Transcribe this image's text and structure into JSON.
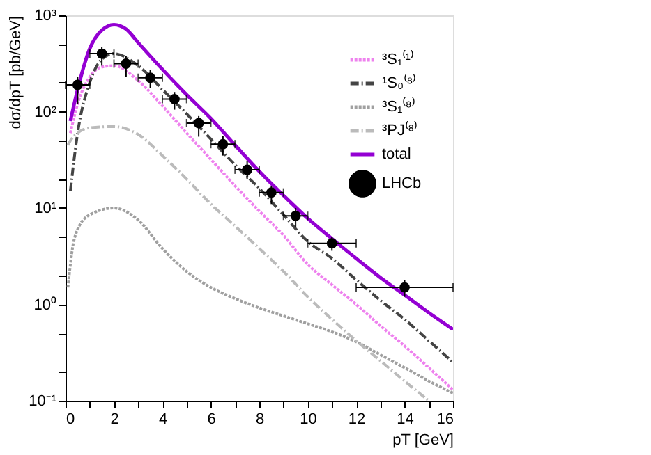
{
  "chart_data": {
    "type": "line",
    "xlabel": "pT [GeV]",
    "ylabel": "dσ/dpT [pb/GeV]",
    "log": "y",
    "legend": "top right",
    "grid": false,
    "xlim": [
      0,
      16
    ],
    "xticks": [
      0,
      {
        "value": 1,
        "label": null
      },
      2,
      {
        "value": 3,
        "label": null
      },
      4,
      {
        "value": 5,
        "label": null
      },
      6,
      {
        "value": 7,
        "label": null
      },
      8,
      {
        "value": 9,
        "label": null
      },
      10,
      {
        "value": 11,
        "label": null
      },
      12,
      {
        "value": 13,
        "label": null
      },
      14,
      {
        "value": 15,
        "label": null
      },
      16
    ],
    "ylim": [
      0.1,
      1000
    ],
    "yticks": [
      {
        "value": 0.1,
        "label": "10⁻¹"
      },
      {
        "value": 0.2,
        "label": null
      },
      {
        "value": 0.5,
        "label": null
      },
      {
        "value": 1,
        "label": "10⁰"
      },
      {
        "value": 2,
        "label": null
      },
      {
        "value": 5,
        "label": null
      },
      {
        "value": 10,
        "label": "10¹"
      },
      {
        "value": 20,
        "label": null
      },
      {
        "value": 50,
        "label": null
      },
      {
        "value": 100,
        "label": "10²"
      },
      {
        "value": 200,
        "label": null
      },
      {
        "value": 500,
        "label": null
      },
      {
        "value": 1000,
        "label": "10³"
      }
    ],
    "series": [
      {
        "name": "³S₁⁽¹⁾",
        "color": "#ee82ee",
        "line_style": "dotted",
        "x": [
          0.2,
          0.5,
          1,
          1.5,
          2,
          3,
          4,
          5,
          6,
          7,
          8,
          9,
          10,
          11,
          12,
          13,
          14,
          15,
          16
        ],
        "values": [
          60,
          120,
          230,
          290,
          300,
          210,
          115,
          60,
          32,
          17,
          9.3,
          5.2,
          2.6,
          1.6,
          1.0,
          0.6,
          0.37,
          0.22,
          0.13
        ]
      },
      {
        "name": "¹S₀⁽⁸⁾",
        "color": "#444444",
        "line_style": "dashed",
        "x": [
          0.2,
          0.5,
          1,
          1.5,
          2,
          3,
          4,
          5,
          6,
          7,
          8,
          9,
          10,
          11,
          12,
          13,
          14,
          15,
          16
        ],
        "values": [
          15,
          60,
          200,
          350,
          400,
          300,
          170,
          95,
          52,
          28,
          16,
          8.5,
          4.5,
          3,
          1.8,
          1.1,
          0.7,
          0.42,
          0.25
        ]
      },
      {
        "name": "³S₁⁽⁸⁾",
        "color": "#a0a0a0",
        "line_style": "dotted",
        "x": [
          0.1,
          0.3,
          0.5,
          1,
          2,
          3,
          4,
          5,
          6,
          7,
          8,
          9,
          10,
          11,
          12,
          13,
          14,
          15,
          16
        ],
        "values": [
          1.5,
          4,
          6,
          8.5,
          10,
          7.5,
          3.8,
          2.2,
          1.5,
          1.15,
          0.92,
          0.76,
          0.63,
          0.52,
          0.41,
          0.3,
          0.22,
          0.16,
          0.12
        ]
      },
      {
        "name": "³PJ⁽⁸⁾",
        "color": "#bbbbbb",
        "line_style": "dashed",
        "x": [
          0.1,
          0.2,
          0.5,
          1,
          2,
          3,
          4,
          5,
          6,
          7,
          8,
          9,
          10,
          11,
          12,
          13,
          14,
          15
        ],
        "values": [
          45,
          50,
          60,
          68,
          70,
          58,
          35,
          20,
          11,
          6.5,
          3.8,
          2.2,
          1.2,
          0.7,
          0.42,
          0.26,
          0.16,
          0.1
        ]
      },
      {
        "name": "total",
        "color": "#9400d3",
        "line_style": "solid",
        "x": [
          0.2,
          0.5,
          1,
          1.5,
          2,
          2.5,
          3,
          4,
          5,
          6,
          7,
          8,
          9,
          10,
          11,
          12,
          13,
          14,
          15,
          16
        ],
        "values": [
          80,
          170,
          450,
          700,
          800,
          720,
          520,
          275,
          150,
          85,
          45,
          24,
          13.5,
          7.8,
          4.8,
          3.0,
          1.9,
          1.25,
          0.82,
          0.55
        ]
      },
      {
        "name": "LHCb",
        "type": "scatter",
        "color": "#000000",
        "marker": "circle",
        "x": [
          0.5,
          1.5,
          2.5,
          3.5,
          4.5,
          5.5,
          6.5,
          7.5,
          8.5,
          9.5,
          11,
          14
        ],
        "values": [
          190,
          400,
          315,
          225,
          135,
          76,
          46,
          25,
          14.5,
          8.3,
          4.3,
          1.5
        ],
        "errors": [
          [
            120,
            230
          ],
          [
            300,
            470
          ],
          [
            230,
            380
          ],
          [
            175,
            270
          ],
          [
            105,
            160
          ],
          [
            55,
            90
          ],
          [
            35,
            56
          ],
          [
            20,
            31
          ],
          [
            11,
            17
          ],
          [
            6.4,
            10
          ],
          [
            3.6,
            5
          ],
          [
            1.2,
            1.8
          ]
        ],
        "xerrors": [
          0.5,
          0.5,
          0.5,
          0.5,
          0.5,
          0.5,
          0.5,
          0.5,
          0.5,
          0.5,
          1,
          2
        ]
      }
    ]
  }
}
